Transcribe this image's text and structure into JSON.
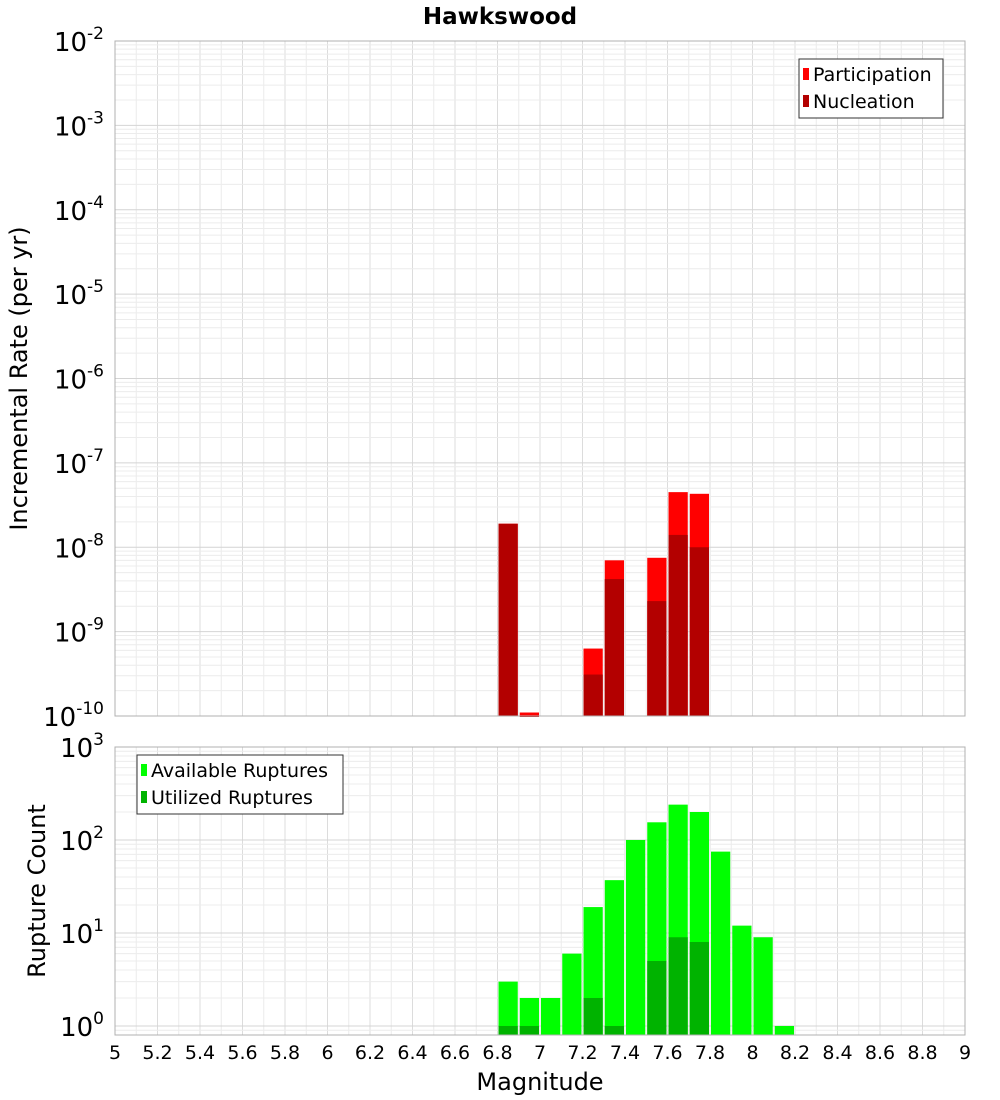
{
  "chart_data": [
    {
      "type": "bar",
      "title": "Hawkswood",
      "xlabel": "",
      "ylabel": "Incremental Rate (per yr)",
      "xlim": [
        5,
        9
      ],
      "ylim": [
        1e-10,
        0.01
      ],
      "yscale": "log",
      "grid": true,
      "legend_position": "top-right",
      "x": [
        6.85,
        6.95,
        7.25,
        7.35,
        7.55,
        7.65,
        7.75
      ],
      "series": [
        {
          "name": "Participation",
          "color": "#ff0000",
          "values": [
            1.9e-08,
            1.1e-10,
            6.3e-10,
            7e-09,
            7.5e-09,
            4.5e-08,
            4.3e-08
          ]
        },
        {
          "name": "Nucleation",
          "color": "#b30000",
          "values": [
            1.9e-08,
            1e-10,
            3.1e-10,
            4.2e-09,
            2.3e-09,
            1.4e-08,
            1e-08
          ]
        }
      ],
      "y_ticks": [
        {
          "base": "10",
          "exp": "-10"
        },
        {
          "base": "10",
          "exp": "-9"
        },
        {
          "base": "10",
          "exp": "-8"
        },
        {
          "base": "10",
          "exp": "-7"
        },
        {
          "base": "10",
          "exp": "-6"
        },
        {
          "base": "10",
          "exp": "-5"
        },
        {
          "base": "10",
          "exp": "-4"
        },
        {
          "base": "10",
          "exp": "-3"
        },
        {
          "base": "10",
          "exp": "-2"
        }
      ]
    },
    {
      "type": "bar",
      "title": "",
      "xlabel": "Magnitude",
      "ylabel": "Rupture Count",
      "xlim": [
        5,
        9
      ],
      "ylim": [
        0.8,
        1000
      ],
      "yscale": "log",
      "grid": true,
      "legend_position": "top-left",
      "x": [
        6.85,
        6.95,
        7.05,
        7.15,
        7.25,
        7.35,
        7.45,
        7.55,
        7.65,
        7.75,
        7.85,
        7.95,
        8.05,
        8.15
      ],
      "series": [
        {
          "name": "Available Ruptures",
          "color": "#00ff00",
          "values": [
            3,
            2,
            2,
            6,
            19,
            37,
            100,
            155,
            240,
            200,
            75,
            12,
            9,
            1
          ]
        },
        {
          "name": "Utilized Ruptures",
          "color": "#00b300",
          "values": [
            1,
            1,
            0,
            0,
            2,
            1,
            0,
            5,
            9,
            8,
            0,
            0,
            0,
            0
          ]
        }
      ],
      "x_ticks": [
        "5",
        "5.2",
        "5.4",
        "5.6",
        "5.8",
        "6",
        "6.2",
        "6.4",
        "6.6",
        "6.8",
        "7",
        "7.2",
        "7.4",
        "7.6",
        "7.8",
        "8",
        "8.2",
        "8.4",
        "8.6",
        "8.8",
        "9"
      ],
      "y_ticks": [
        {
          "base": "10",
          "exp": "0"
        },
        {
          "base": "10",
          "exp": "1"
        },
        {
          "base": "10",
          "exp": "2"
        },
        {
          "base": "10",
          "exp": "3"
        }
      ]
    }
  ]
}
